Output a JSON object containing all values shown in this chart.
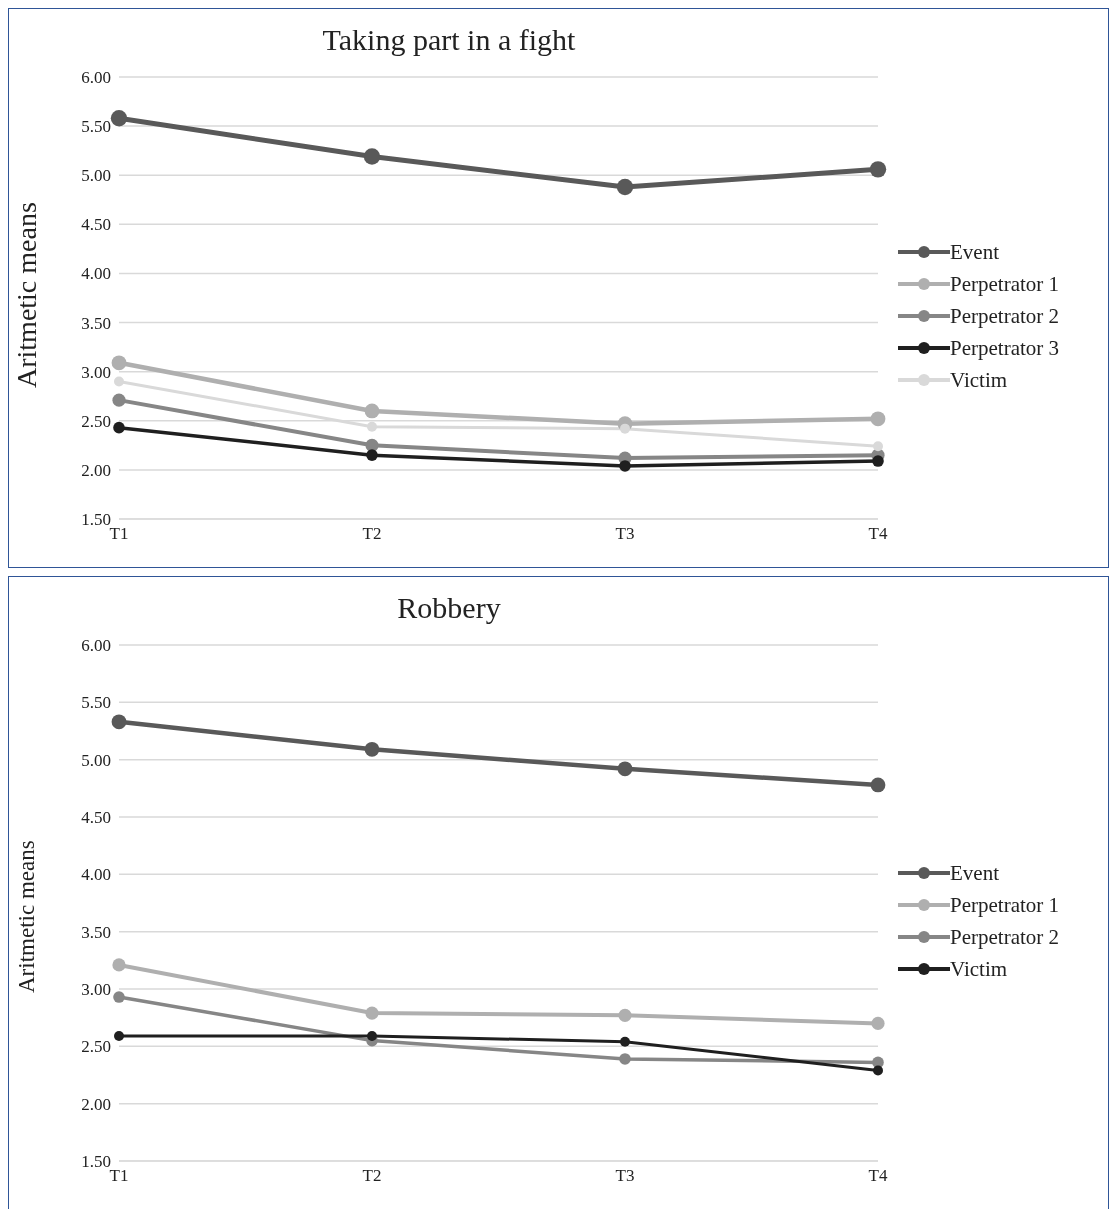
{
  "chart_data": [
    {
      "type": "line",
      "title": "Taking part in a fight",
      "ylabel": "Aritmetic means",
      "categories": [
        "T1",
        "T2",
        "T3",
        "T4"
      ],
      "series": [
        {
          "name": "Event",
          "color": "#595959",
          "values": [
            5.58,
            5.19,
            4.88,
            5.06
          ]
        },
        {
          "name": "Perpetrator 1",
          "color": "#afafaf",
          "values": [
            3.09,
            2.6,
            2.47,
            2.52
          ]
        },
        {
          "name": "Perpetrator 2",
          "color": "#868686",
          "values": [
            2.71,
            2.25,
            2.12,
            2.15
          ]
        },
        {
          "name": "Perpetrator 3",
          "color": "#1f1f1f",
          "values": [
            2.43,
            2.15,
            2.04,
            2.09
          ]
        },
        {
          "name": "Victim",
          "color": "#d9d9d9",
          "values": [
            2.9,
            2.44,
            2.42,
            2.24
          ]
        }
      ],
      "ylim": [
        1.5,
        6
      ],
      "yticks": [
        {
          "value": 1.5,
          "label": "1.50"
        },
        {
          "value": 2,
          "label": "2.00"
        },
        {
          "value": 2.5,
          "label": "2.50"
        },
        {
          "value": 3,
          "label": "3.00"
        },
        {
          "value": 3.5,
          "label": "3.50"
        },
        {
          "value": 4,
          "label": "4.00"
        },
        {
          "value": 4.5,
          "label": "4.50"
        },
        {
          "value": 5,
          "label": "5.00"
        },
        {
          "value": 5.5,
          "label": "5.50"
        },
        {
          "value": 6,
          "label": "6.00"
        }
      ],
      "grid": "y",
      "legend": "right",
      "marker": "circle"
    },
    {
      "type": "line",
      "title": "Robbery",
      "ylabel": "Aritmetic means",
      "categories": [
        "T1",
        "T2",
        "T3",
        "T4"
      ],
      "series": [
        {
          "name": "Event",
          "color": "#595959",
          "values": [
            5.33,
            5.09,
            4.92,
            4.78
          ]
        },
        {
          "name": "Perpetrator 1",
          "color": "#afafaf",
          "values": [
            3.21,
            2.79,
            2.77,
            2.7
          ]
        },
        {
          "name": "Perpetrator 2",
          "color": "#868686",
          "values": [
            2.93,
            2.55,
            2.39,
            2.36
          ]
        },
        {
          "name": "Victim",
          "color": "#1f1f1f",
          "values": [
            2.59,
            2.59,
            2.54,
            2.29
          ]
        }
      ],
      "ylim": [
        1.5,
        6
      ],
      "yticks": [
        {
          "value": 1.5,
          "label": "1.50"
        },
        {
          "value": 2,
          "label": "2.00"
        },
        {
          "value": 2.5,
          "label": "2.50"
        },
        {
          "value": 3,
          "label": "3.00"
        },
        {
          "value": 3.5,
          "label": "3.50"
        },
        {
          "value": 4,
          "label": "4.00"
        },
        {
          "value": 4.5,
          "label": "4.50"
        },
        {
          "value": 5,
          "label": "5.00"
        },
        {
          "value": 5.5,
          "label": "5.50"
        },
        {
          "value": 6,
          "label": "6.00"
        }
      ],
      "grid": "y",
      "legend": "right",
      "marker": "circle"
    }
  ]
}
